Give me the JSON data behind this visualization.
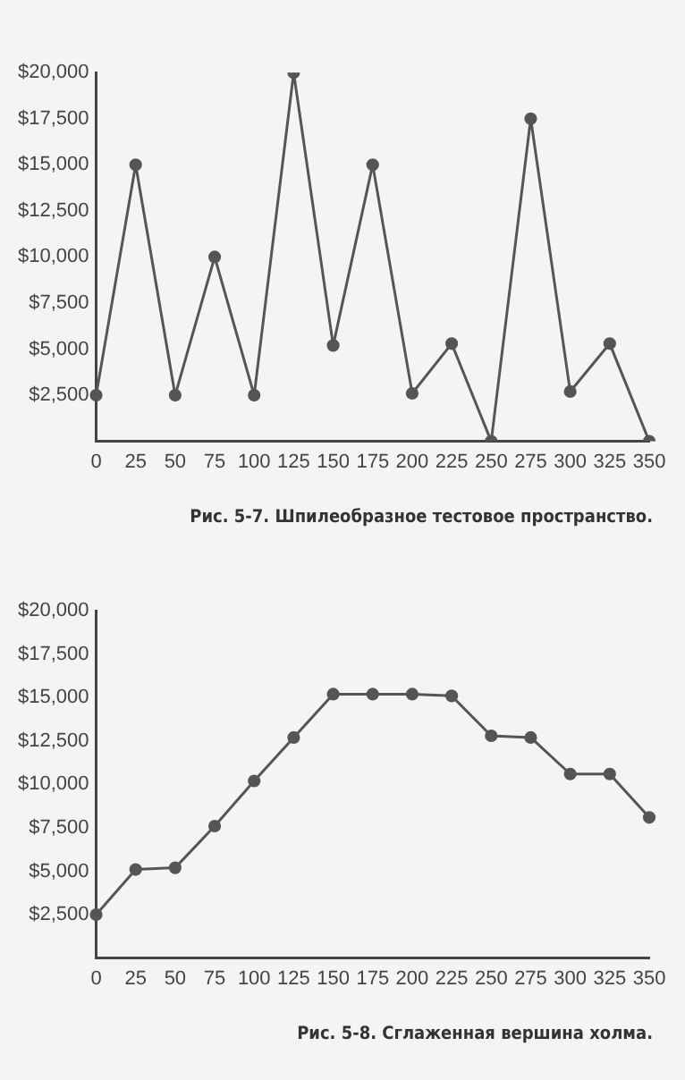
{
  "chart_data": [
    {
      "type": "line",
      "categories": [
        "0",
        "25",
        "50",
        "75",
        "100",
        "125",
        "150",
        "175",
        "200",
        "225",
        "250",
        "275",
        "300",
        "325",
        "350"
      ],
      "values": [
        2500,
        15000,
        2500,
        10000,
        2500,
        20000,
        5200,
        15000,
        2600,
        5300,
        0,
        17500,
        2700,
        5300,
        0
      ],
      "color": "#555555",
      "marker": "circle",
      "ylim": [
        0,
        20000
      ],
      "yticks": [
        {
          "value": 2500,
          "label": "$2,500"
        },
        {
          "value": 5000,
          "label": "$5,000"
        },
        {
          "value": 7500,
          "label": "$7,500"
        },
        {
          "value": 10000,
          "label": "$10,000"
        },
        {
          "value": 12500,
          "label": "$12,500"
        },
        {
          "value": 15000,
          "label": "$15,000"
        },
        {
          "value": 17500,
          "label": "$17,500"
        },
        {
          "value": 20000,
          "label": "$20,000"
        }
      ],
      "annotations": [
        "Рис. 5-7. Шпилеобразное тестовое пространство."
      ]
    },
    {
      "type": "line",
      "categories": [
        "0",
        "25",
        "50",
        "75",
        "100",
        "125",
        "150",
        "175",
        "200",
        "225",
        "250",
        "275",
        "300",
        "325",
        "350"
      ],
      "values": [
        2500,
        5100,
        5200,
        7600,
        10200,
        12700,
        15200,
        15200,
        15200,
        15100,
        12800,
        12700,
        10600,
        10600,
        8100
      ],
      "color": "#555555",
      "marker": "circle",
      "ylim": [
        0,
        20000
      ],
      "yticks": [
        {
          "value": 2500,
          "label": "$2,500"
        },
        {
          "value": 5000,
          "label": "$5,000"
        },
        {
          "value": 7500,
          "label": "$7,500"
        },
        {
          "value": 10000,
          "label": "$10,000"
        },
        {
          "value": 12500,
          "label": "$12,500"
        },
        {
          "value": 15000,
          "label": "$15,000"
        },
        {
          "value": 17500,
          "label": "$17,500"
        },
        {
          "value": 20000,
          "label": "$20,000"
        }
      ],
      "annotations": [
        "Рис. 5-8. Сглаженная вершина холма."
      ]
    }
  ]
}
